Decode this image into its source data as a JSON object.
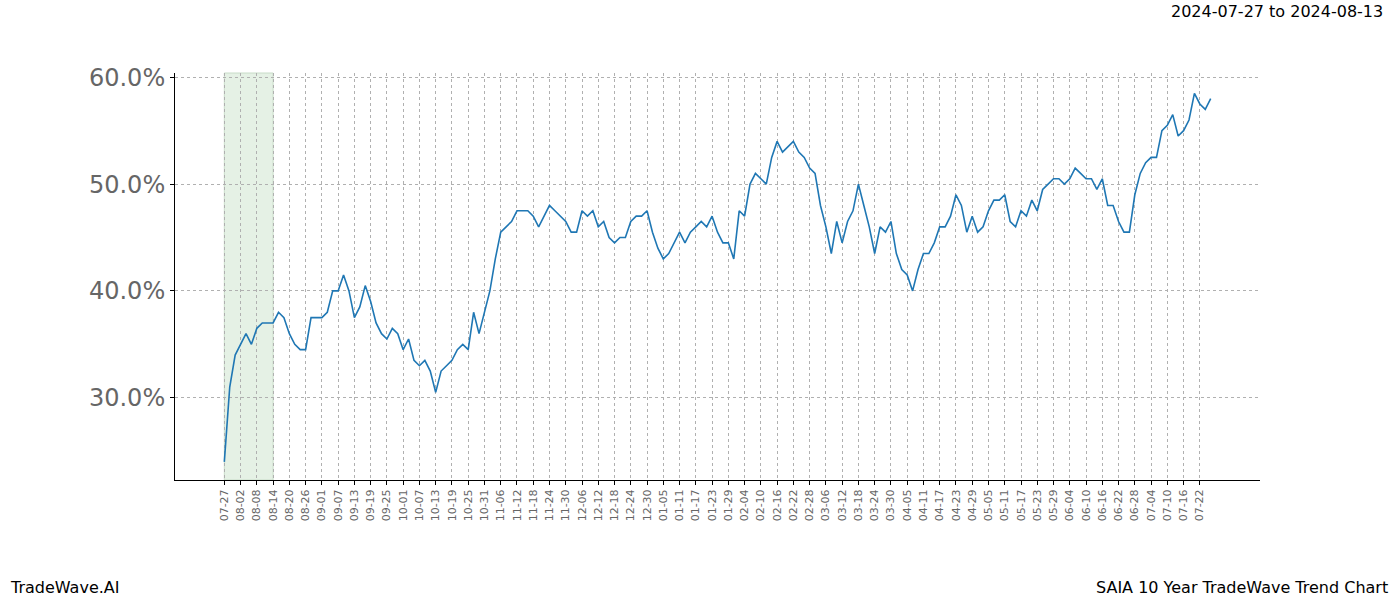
{
  "chart_data": {
    "type": "line",
    "title": "SAIA 10 Year TradeWave Trend Chart",
    "subtitle": "2024-07-27 to 2024-08-13",
    "source": "TradeWave.AI",
    "color": "#1f77b4",
    "grid": true,
    "highlight": {
      "from": "07-27",
      "to": "08-14",
      "color": "#e5f1e5"
    },
    "ylim": [
      22.3,
      60.4
    ],
    "yticks": [
      {
        "value": 30,
        "label": "30.0%"
      },
      {
        "value": 40,
        "label": "40.0%"
      },
      {
        "value": 50,
        "label": "50.0%"
      },
      {
        "value": 60,
        "label": "60.0%"
      }
    ],
    "categories": [
      "07-27",
      null,
      null,
      "08-02",
      null,
      null,
      "08-08",
      null,
      null,
      "08-14",
      null,
      null,
      "08-20",
      null,
      null,
      "08-26",
      null,
      null,
      "09-01",
      null,
      null,
      "09-07",
      null,
      null,
      "09-13",
      null,
      null,
      "09-19",
      null,
      null,
      "09-25",
      null,
      null,
      "10-01",
      null,
      null,
      "10-07",
      null,
      null,
      "10-13",
      null,
      null,
      "10-19",
      null,
      null,
      "10-25",
      null,
      null,
      "10-31",
      null,
      null,
      "11-06",
      null,
      null,
      "11-12",
      null,
      null,
      "11-18",
      null,
      null,
      "11-24",
      null,
      null,
      "11-30",
      null,
      null,
      "12-06",
      null,
      null,
      "12-12",
      null,
      null,
      "12-18",
      null,
      null,
      "12-24",
      null,
      null,
      "12-30",
      null,
      null,
      "01-05",
      null,
      null,
      "01-11",
      null,
      null,
      "01-17",
      null,
      null,
      "01-23",
      null,
      null,
      "01-29",
      null,
      null,
      "02-04",
      null,
      null,
      "02-10",
      null,
      null,
      "02-16",
      null,
      null,
      "02-22",
      null,
      null,
      "02-28",
      null,
      null,
      "03-06",
      null,
      null,
      "03-12",
      null,
      null,
      "03-18",
      null,
      null,
      "03-24",
      null,
      null,
      "03-30",
      null,
      null,
      "04-05",
      null,
      null,
      "04-11",
      null,
      null,
      "04-17",
      null,
      null,
      "04-23",
      null,
      null,
      "04-29",
      null,
      null,
      "05-05",
      null,
      null,
      "05-11",
      null,
      null,
      "05-17",
      null,
      null,
      "05-23",
      null,
      null,
      "05-29",
      null,
      null,
      "06-04",
      null,
      null,
      "06-10",
      null,
      null,
      "06-16",
      null,
      null,
      "06-22",
      null,
      null,
      "06-28",
      null,
      null,
      "07-04",
      null,
      null,
      "07-10",
      null,
      null,
      "07-16",
      null,
      null,
      "07-22",
      null,
      null
    ],
    "values": [
      24,
      31,
      34,
      35,
      36,
      35,
      36.5,
      37,
      37,
      37,
      38,
      37.5,
      36,
      35,
      34.5,
      34.5,
      37.5,
      37.5,
      37.5,
      38,
      40,
      40,
      41.5,
      40,
      37.5,
      38.5,
      40.5,
      39,
      37,
      36,
      35.5,
      36.5,
      36,
      34.5,
      35.5,
      33.5,
      33,
      33.5,
      32.5,
      30.5,
      32.5,
      33,
      33.5,
      34.5,
      35,
      34.5,
      38,
      36,
      38,
      40,
      43,
      45.5,
      46,
      46.5,
      47.5,
      47.5,
      47.5,
      47,
      46,
      47,
      48,
      47.5,
      47,
      46.5,
      45.5,
      45.5,
      47.5,
      47,
      47.5,
      46,
      46.5,
      45,
      44.5,
      45,
      45,
      46.5,
      47,
      47,
      47.5,
      45.5,
      44,
      43,
      43.5,
      44.5,
      45.5,
      44.5,
      45.5,
      46,
      46.5,
      46,
      47,
      45.5,
      44.5,
      44.5,
      43,
      47.5,
      47,
      50,
      51,
      50.5,
      50,
      52.5,
      54,
      53,
      53.5,
      54,
      53,
      52.5,
      51.5,
      51,
      48,
      46,
      43.5,
      46.5,
      44.5,
      46.5,
      47.5,
      50,
      48,
      46,
      43.5,
      46,
      45.5,
      46.5,
      43.5,
      42,
      41.5,
      40,
      42,
      43.5,
      43.5,
      44.5,
      46,
      46,
      47,
      49,
      48,
      45.5,
      47,
      45.5,
      46,
      47.5,
      48.5,
      48.5,
      49,
      46.5,
      46,
      47.5,
      47,
      48.5,
      47.5,
      49.5,
      50,
      50.5,
      50.5,
      50,
      50.5,
      51.5,
      51,
      50.5,
      50.5,
      49.5,
      50.5,
      48,
      48,
      46.5,
      45.5,
      45.5,
      49,
      51,
      52,
      52.5,
      52.5,
      55,
      55.5,
      56.5,
      54.5,
      55,
      56,
      58.5,
      57.5,
      57,
      58
    ]
  }
}
